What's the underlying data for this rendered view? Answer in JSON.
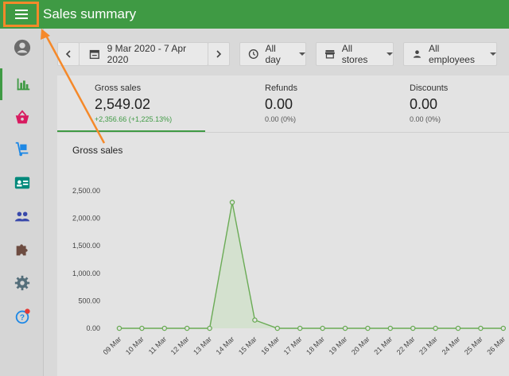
{
  "header": {
    "title": "Sales summary",
    "menu_icon": "hamburger-icon"
  },
  "sidebar": {
    "items": [
      {
        "name": "avatar",
        "icon": "user-avatar-icon"
      },
      {
        "name": "reports",
        "icon": "bar-chart-icon",
        "active": true
      },
      {
        "name": "items",
        "icon": "basket-icon"
      },
      {
        "name": "inventory",
        "icon": "dolly-icon"
      },
      {
        "name": "employees",
        "icon": "badge-icon"
      },
      {
        "name": "customers",
        "icon": "people-icon"
      },
      {
        "name": "integrations",
        "icon": "puzzle-icon"
      },
      {
        "name": "settings",
        "icon": "gear-icon"
      },
      {
        "name": "help",
        "icon": "help-icon"
      }
    ]
  },
  "filters": {
    "date_range": "9 Mar 2020 - 7 Apr 2020",
    "time": "All day",
    "stores": "All stores",
    "employees": "All employees"
  },
  "kpis": [
    {
      "label": "Gross sales",
      "value": "2,549.02",
      "change": "+2,356.66 (+1,225.13%)"
    },
    {
      "label": "Refunds",
      "value": "0.00",
      "change": "0.00 (0%)"
    },
    {
      "label": "Discounts",
      "value": "0.00",
      "change": "0.00 (0%)"
    }
  ],
  "chart_title": "Gross sales",
  "colors": {
    "accent": "#3f9a44",
    "highlight": "#f5892a"
  },
  "chart_data": {
    "type": "area",
    "title": "Gross sales",
    "categories": [
      "09 Mar",
      "10 Mar",
      "11 Mar",
      "12 Mar",
      "13 Mar",
      "14 Mar",
      "15 Mar",
      "16 Mar",
      "17 Mar",
      "18 Mar",
      "19 Mar",
      "20 Mar",
      "21 Mar",
      "22 Mar",
      "23 Mar",
      "24 Mar",
      "25 Mar",
      "26 Mar"
    ],
    "values": [
      0,
      0,
      0,
      0,
      0,
      2290,
      150,
      0,
      0,
      0,
      0,
      0,
      0,
      0,
      0,
      0,
      0,
      0
    ],
    "ytick_labels": [
      "0.00",
      "500.00",
      "1,000.00",
      "1,500.00",
      "2,000.00",
      "2,500.00"
    ],
    "ylim": [
      0,
      2500
    ],
    "grid": false
  }
}
